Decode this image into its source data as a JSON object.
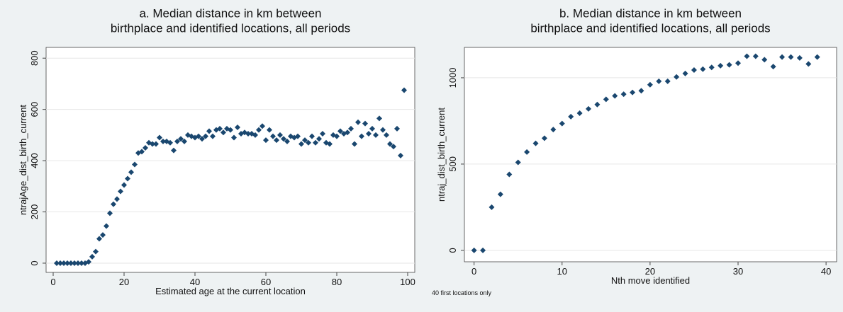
{
  "chart_data": [
    {
      "type": "scatter",
      "title": [
        "a. Median distance in km between",
        "birthplace and identified locations, all periods"
      ],
      "x_label": "Estimated age at the current location",
      "y_label": "ntrajAge_dist_birth_current",
      "color": "#1a476f",
      "grid": true,
      "xlim": [
        -2,
        102
      ],
      "ylim": [
        -36,
        842
      ],
      "xticks": [
        0,
        20,
        40,
        60,
        80,
        100
      ],
      "yticks": [
        0,
        200,
        400,
        600,
        800
      ],
      "x": [
        1,
        2,
        3,
        4,
        5,
        6,
        7,
        8,
        9,
        10,
        11,
        12,
        13,
        14,
        15,
        16,
        17,
        18,
        19,
        20,
        21,
        22,
        23,
        24,
        25,
        26,
        27,
        28,
        29,
        30,
        31,
        32,
        33,
        34,
        35,
        36,
        37,
        38,
        39,
        40,
        41,
        42,
        43,
        44,
        45,
        46,
        47,
        48,
        49,
        50,
        51,
        52,
        53,
        54,
        55,
        56,
        57,
        58,
        59,
        60,
        61,
        62,
        63,
        64,
        65,
        66,
        67,
        68,
        69,
        70,
        71,
        72,
        73,
        74,
        75,
        76,
        77,
        78,
        79,
        80,
        81,
        82,
        83,
        84,
        85,
        86,
        87,
        88,
        89,
        90,
        91,
        92,
        93,
        94,
        95,
        96,
        97,
        98,
        99
      ],
      "values": [
        0,
        0,
        0,
        0,
        0,
        0,
        0,
        0,
        0,
        5,
        25,
        45,
        95,
        110,
        145,
        195,
        230,
        250,
        280,
        305,
        330,
        355,
        385,
        430,
        435,
        450,
        470,
        465,
        465,
        490,
        475,
        475,
        470,
        440,
        475,
        485,
        475,
        500,
        495,
        490,
        495,
        485,
        495,
        515,
        495,
        520,
        525,
        510,
        525,
        520,
        490,
        530,
        505,
        510,
        505,
        505,
        500,
        520,
        535,
        480,
        520,
        495,
        480,
        500,
        485,
        475,
        495,
        490,
        495,
        465,
        480,
        470,
        495,
        470,
        485,
        505,
        470,
        465,
        500,
        495,
        515,
        505,
        510,
        525,
        465,
        550,
        495,
        545,
        505,
        525,
        500,
        565,
        520,
        500,
        465,
        455,
        525,
        420,
        675
      ]
    },
    {
      "type": "scatter",
      "title": [
        "b. Median distance in km between",
        "birthplace and identified locations, all periods"
      ],
      "x_label": "Nth move identified",
      "y_label": "ntraj_dist_birth_current",
      "note": "40 first locations only",
      "color": "#1a476f",
      "grid": true,
      "xlim": [
        -1.1,
        41.2
      ],
      "ylim": [
        -66,
        1176
      ],
      "xticks": [
        0,
        10,
        20,
        30,
        40
      ],
      "yticks": [
        0,
        500,
        1000
      ],
      "x": [
        0,
        1,
        2,
        3,
        4,
        5,
        6,
        7,
        8,
        9,
        10,
        11,
        12,
        13,
        14,
        15,
        16,
        17,
        18,
        19,
        20,
        21,
        22,
        23,
        24,
        25,
        26,
        27,
        28,
        29,
        30,
        31,
        32,
        33,
        34,
        35,
        36,
        37,
        38,
        39
      ],
      "values": [
        0,
        0,
        250,
        325,
        440,
        510,
        570,
        620,
        650,
        700,
        735,
        775,
        795,
        820,
        845,
        875,
        895,
        905,
        915,
        925,
        960,
        980,
        980,
        1005,
        1025,
        1045,
        1050,
        1060,
        1070,
        1075,
        1085,
        1125,
        1125,
        1105,
        1065,
        1120,
        1120,
        1115,
        1080,
        1120
      ]
    }
  ]
}
